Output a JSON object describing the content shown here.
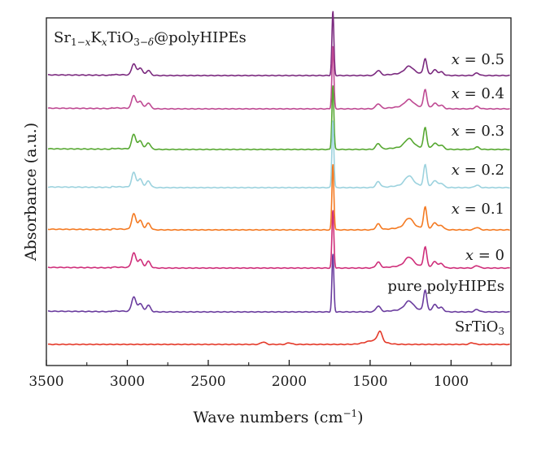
{
  "chart_data": {
    "type": "line",
    "title": "Sr1−xKxTiO3−δ@polyHIPEs",
    "xlabel": "Wave numbers (cm−1)",
    "ylabel": "Absorbance (a.u.)",
    "xlim": [
      3500,
      630
    ],
    "x_reversed": true,
    "x_ticks": [
      3500,
      3000,
      2500,
      2000,
      1500,
      1000
    ],
    "y_ticks_shown": false,
    "grid": false,
    "series": [
      {
        "name": "x = 0.5",
        "color": "#7B2A7F",
        "peaks": [
          [
            2960,
            14
          ],
          [
            2920,
            9
          ],
          [
            2870,
            6
          ],
          [
            1730,
            80
          ],
          [
            1450,
            6
          ],
          [
            1260,
            8
          ],
          [
            1160,
            19
          ],
          [
            1100,
            6
          ],
          [
            1060,
            4
          ],
          [
            840,
            3
          ]
        ]
      },
      {
        "name": "x = 0.4",
        "color": "#BF4A93",
        "peaks": [
          [
            2960,
            16
          ],
          [
            2920,
            9
          ],
          [
            2870,
            7
          ],
          [
            1730,
            78
          ],
          [
            1450,
            6
          ],
          [
            1260,
            8
          ],
          [
            1160,
            22
          ],
          [
            1100,
            6
          ],
          [
            1060,
            4
          ],
          [
            840,
            3
          ]
        ]
      },
      {
        "name": "x = 0.3",
        "color": "#57A832",
        "peaks": [
          [
            2960,
            18
          ],
          [
            2920,
            10
          ],
          [
            2870,
            8
          ],
          [
            1730,
            80
          ],
          [
            1450,
            7
          ],
          [
            1260,
            10
          ],
          [
            1160,
            25
          ],
          [
            1100,
            7
          ],
          [
            1060,
            5
          ],
          [
            840,
            3
          ]
        ]
      },
      {
        "name": "x = 0.2",
        "color": "#9CD2DE",
        "peaks": [
          [
            2960,
            18
          ],
          [
            2920,
            10
          ],
          [
            2870,
            8
          ],
          [
            1730,
            84
          ],
          [
            1450,
            7
          ],
          [
            1260,
            11
          ],
          [
            1160,
            26
          ],
          [
            1100,
            8
          ],
          [
            1060,
            5
          ],
          [
            840,
            3
          ]
        ]
      },
      {
        "name": "x = 0.1",
        "color": "#F47A22",
        "peaks": [
          [
            2960,
            19
          ],
          [
            2920,
            11
          ],
          [
            2870,
            8
          ],
          [
            1730,
            82
          ],
          [
            1450,
            7
          ],
          [
            1260,
            11
          ],
          [
            1160,
            26
          ],
          [
            1100,
            8
          ],
          [
            1060,
            5
          ],
          [
            840,
            3
          ]
        ]
      },
      {
        "name": "x = 0",
        "color": "#CF2E7A",
        "peaks": [
          [
            2960,
            18
          ],
          [
            2920,
            10
          ],
          [
            2870,
            8
          ],
          [
            1730,
            72
          ],
          [
            1450,
            7
          ],
          [
            1260,
            10
          ],
          [
            1160,
            24
          ],
          [
            1100,
            7
          ],
          [
            1060,
            5
          ],
          [
            840,
            3
          ]
        ]
      },
      {
        "name": "pure polyHIPEs",
        "color": "#6A3C9E",
        "peaks": [
          [
            2960,
            18
          ],
          [
            2920,
            10
          ],
          [
            2870,
            8
          ],
          [
            1730,
            72
          ],
          [
            1450,
            7
          ],
          [
            1260,
            10
          ],
          [
            1160,
            25
          ],
          [
            1100,
            8
          ],
          [
            1060,
            5
          ],
          [
            840,
            3
          ]
        ]
      },
      {
        "name": "SrTiO",
        "name_sub": "3",
        "color": "#E43A2A",
        "peaks": [
          [
            2160,
            3
          ],
          [
            2000,
            2
          ],
          [
            1440,
            12
          ],
          [
            870,
            2
          ]
        ]
      }
    ]
  }
}
